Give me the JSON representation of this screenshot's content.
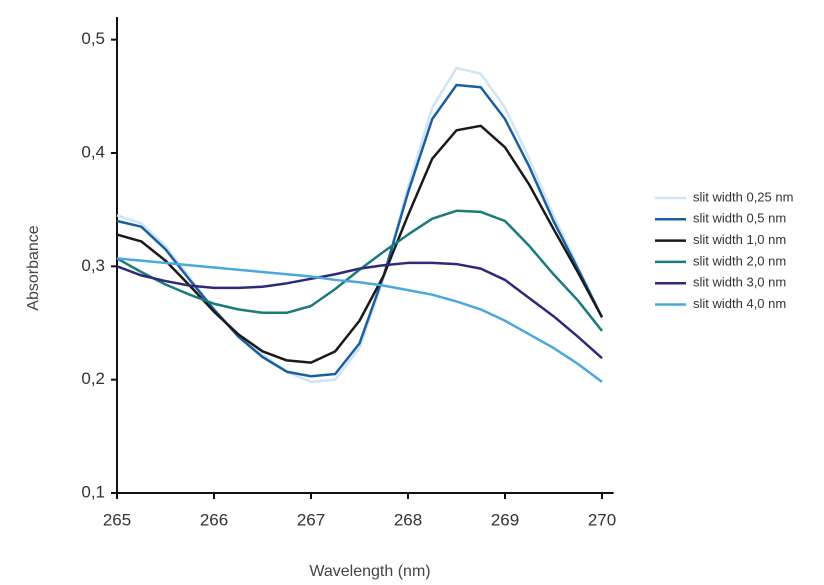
{
  "chart_data": {
    "type": "line",
    "x_label": "Wavelength (nm)",
    "y_label": "Absorbance",
    "x": [
      265,
      265.25,
      265.5,
      265.75,
      266,
      266.25,
      266.5,
      266.75,
      267,
      267.25,
      267.5,
      267.75,
      268,
      268.25,
      268.5,
      268.75,
      269,
      269.25,
      269.5,
      269.75,
      270
    ],
    "series": [
      {
        "name": "slit width 0,25 nm",
        "color": "#cfe5f5",
        "values": [
          0.345,
          0.338,
          0.318,
          0.29,
          0.262,
          0.24,
          0.222,
          0.207,
          0.198,
          0.2,
          0.228,
          0.29,
          0.37,
          0.44,
          0.475,
          0.47,
          0.44,
          0.395,
          0.345,
          0.3,
          0.255
        ]
      },
      {
        "name": "slit width 0,5 nm",
        "color": "#1a5fa0",
        "values": [
          0.34,
          0.335,
          0.315,
          0.288,
          0.262,
          0.238,
          0.22,
          0.207,
          0.203,
          0.205,
          0.232,
          0.292,
          0.365,
          0.43,
          0.46,
          0.458,
          0.43,
          0.388,
          0.34,
          0.298,
          0.255
        ]
      },
      {
        "name": "slit width 1,0 nm",
        "color": "#1a1a1a",
        "values": [
          0.328,
          0.322,
          0.305,
          0.283,
          0.26,
          0.24,
          0.225,
          0.217,
          0.215,
          0.225,
          0.252,
          0.292,
          0.345,
          0.395,
          0.42,
          0.424,
          0.405,
          0.372,
          0.333,
          0.295,
          0.255
        ]
      },
      {
        "name": "slit width 2,0 nm",
        "color": "#1b7a7a",
        "values": [
          0.307,
          0.295,
          0.284,
          0.275,
          0.267,
          0.262,
          0.259,
          0.259,
          0.265,
          0.28,
          0.297,
          0.313,
          0.328,
          0.342,
          0.349,
          0.348,
          0.34,
          0.318,
          0.293,
          0.27,
          0.243
        ]
      },
      {
        "name": "slit width 3,0 nm",
        "color": "#2e2a7a",
        "values": [
          0.3,
          0.292,
          0.287,
          0.283,
          0.281,
          0.281,
          0.282,
          0.285,
          0.289,
          0.293,
          0.298,
          0.301,
          0.303,
          0.303,
          0.302,
          0.298,
          0.288,
          0.272,
          0.256,
          0.238,
          0.219
        ]
      },
      {
        "name": "slit width 4,0 nm",
        "color": "#4aa8dc",
        "values": [
          0.307,
          0.305,
          0.303,
          0.301,
          0.299,
          0.297,
          0.295,
          0.293,
          0.291,
          0.288,
          0.286,
          0.283,
          0.279,
          0.275,
          0.269,
          0.262,
          0.252,
          0.24,
          0.228,
          0.214,
          0.198
        ]
      }
    ],
    "xlim": [
      265,
      270.12
    ],
    "xticks": [
      265,
      266,
      267,
      268,
      269,
      270
    ],
    "ylim": [
      0.1,
      0.52
    ],
    "yticks": [
      {
        "value": 0.1,
        "label": "0,1"
      },
      {
        "value": 0.2,
        "label": "0,2"
      },
      {
        "value": 0.3,
        "label": "0,3"
      },
      {
        "value": 0.4,
        "label": "0,4"
      },
      {
        "value": 0.5,
        "label": "0,5"
      }
    ],
    "legend": "right",
    "grid": false
  }
}
